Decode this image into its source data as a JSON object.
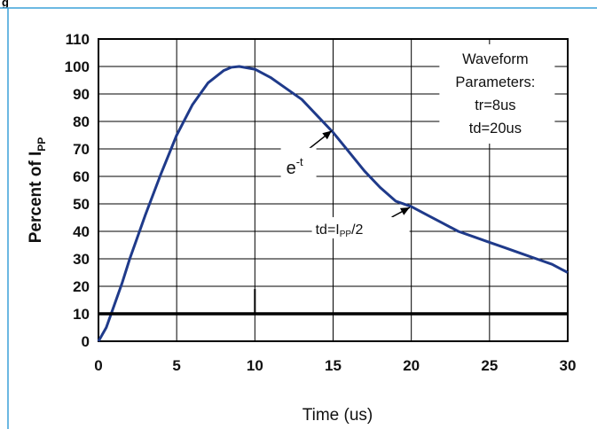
{
  "header": {
    "label": "g"
  },
  "chart_data": {
    "type": "line",
    "title": "",
    "xlabel": "Time (us)",
    "ylabel": "Percent of I",
    "ylabel_sub": "PP",
    "xlim": [
      0,
      30
    ],
    "ylim": [
      0,
      110
    ],
    "xticks": [
      0,
      5,
      10,
      15,
      20,
      25,
      30
    ],
    "yticks": [
      0,
      10,
      20,
      30,
      40,
      50,
      60,
      70,
      80,
      90,
      100,
      110
    ],
    "grid": true,
    "series": [
      {
        "x": [
          0,
          0.5,
          1,
          1.5,
          2,
          3,
          4,
          5,
          6,
          7,
          8,
          8.5,
          9,
          10,
          11,
          12,
          13,
          14,
          15,
          16,
          17,
          18,
          19,
          20,
          21,
          22,
          23,
          24,
          25,
          26,
          27,
          28,
          29,
          30
        ],
        "values": [
          0,
          5,
          13,
          21,
          30,
          46,
          61,
          75,
          86,
          94,
          98.5,
          99.7,
          100,
          99,
          96,
          92,
          88,
          82,
          76,
          69,
          62,
          56,
          51,
          49,
          46,
          43,
          40,
          38,
          36,
          34,
          32,
          30,
          28,
          25
        ],
        "color": "#1f3a8a"
      },
      {
        "x": [
          0,
          30
        ],
        "values": [
          10,
          10
        ],
        "color": "#000000"
      }
    ],
    "marker": {
      "x": 10,
      "from": 10,
      "to": 19
    },
    "legend_box": {
      "lines": [
        "Waveform",
        "Parameters:",
        "tr=8us",
        "td=20us"
      ]
    },
    "annotations": [
      {
        "text": "e",
        "superscript": "-t",
        "x": 15,
        "y": 77,
        "label_x": 12.0,
        "label_y": 62
      },
      {
        "text": "td=I",
        "subscript": "PP",
        "suffix": "/2",
        "x": 20,
        "y": 49,
        "label_x": 15.8,
        "label_y": 40
      }
    ]
  }
}
